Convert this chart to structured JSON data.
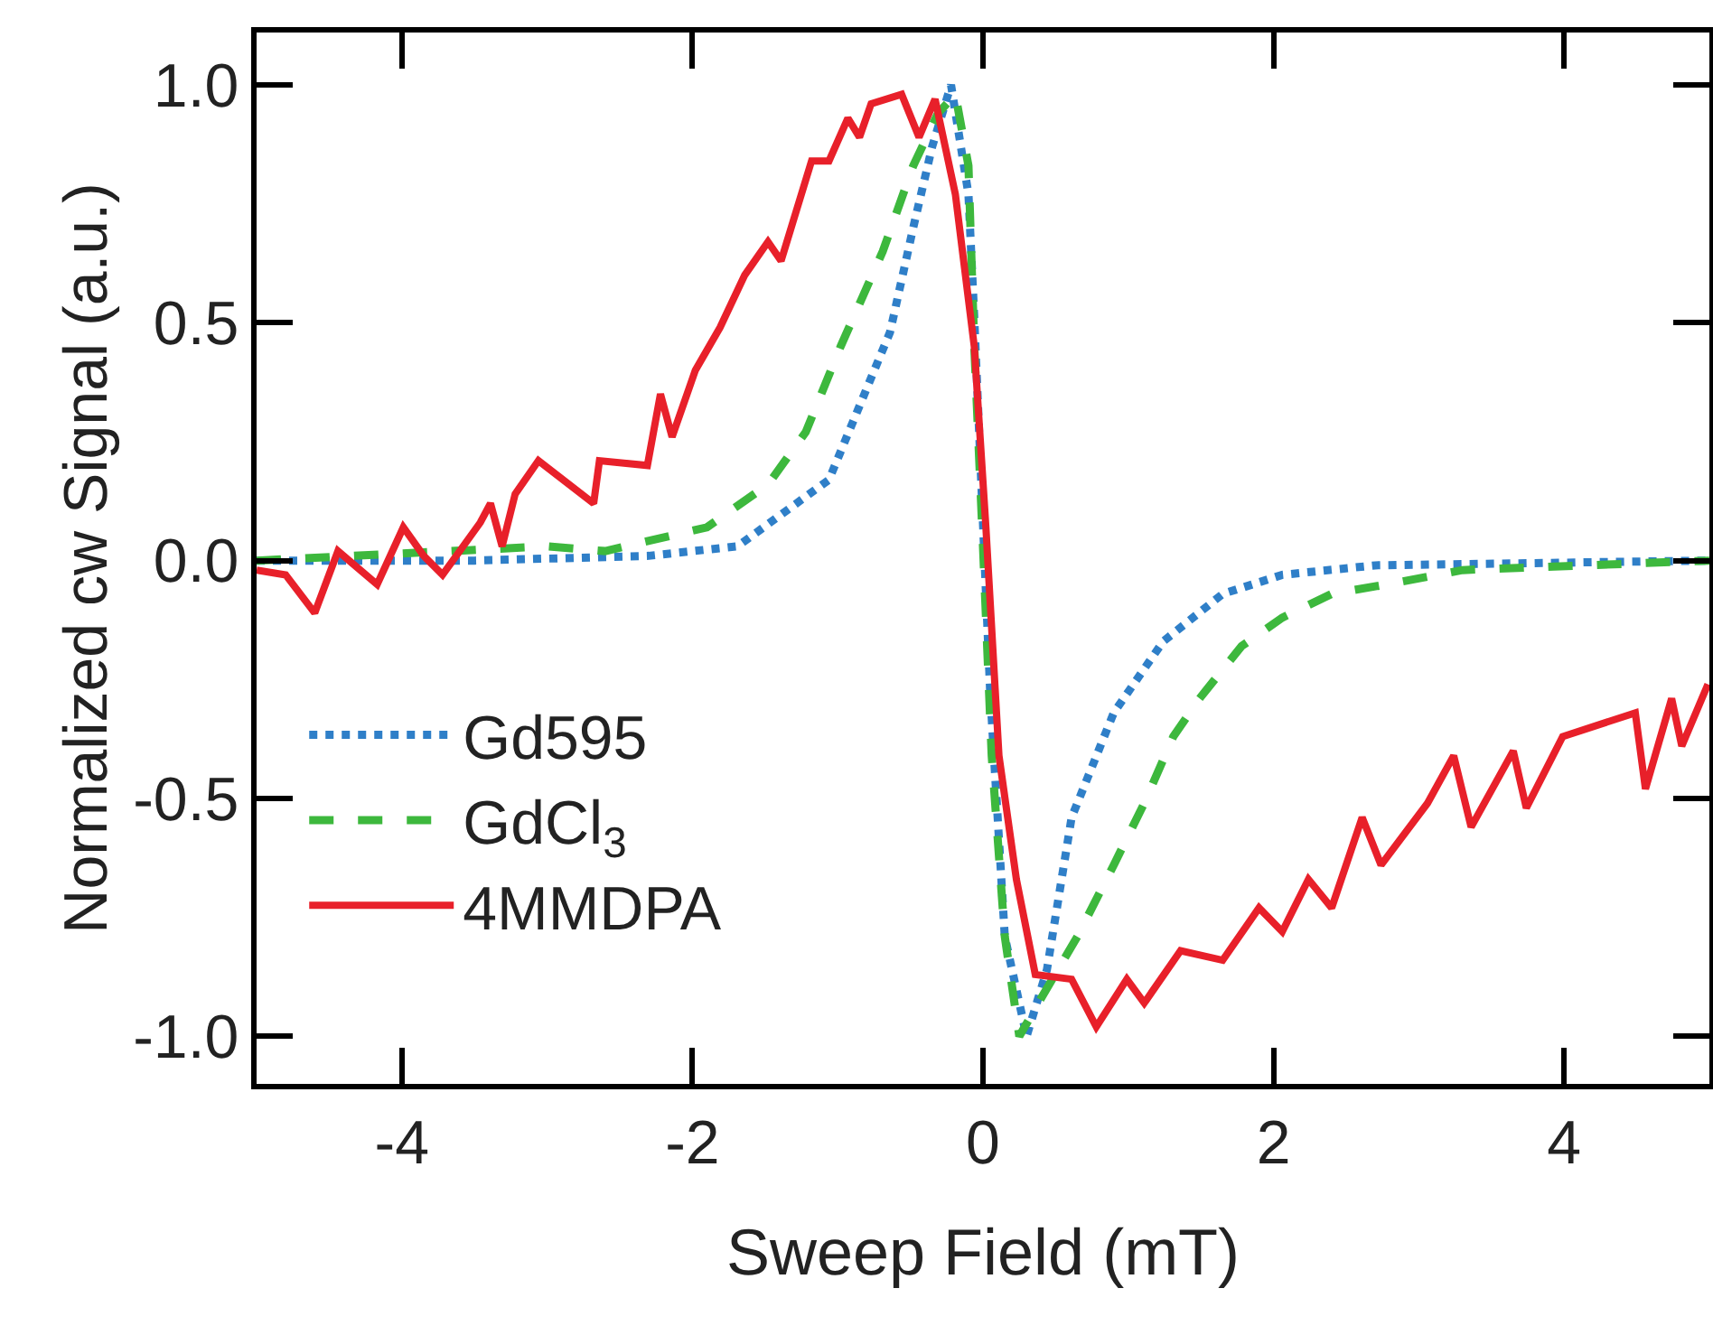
{
  "chart_data": {
    "type": "line",
    "xlabel": "Sweep Field (mT)",
    "ylabel": "Normalized cw Signal (a.u.)",
    "xlim": [
      -5,
      5
    ],
    "xticks": [
      -4,
      -2,
      0,
      2,
      4
    ],
    "ylim": [
      -1.1,
      1.11
    ],
    "yticks": [
      {
        "value": -1,
        "label": "-1.0"
      },
      {
        "value": -0.5,
        "label": "-0.5"
      },
      {
        "value": 0,
        "label": "0.0"
      },
      {
        "value": 0.5,
        "label": "0.5"
      },
      {
        "value": 1,
        "label": "1.0"
      }
    ],
    "grid": false,
    "legend": "bottom left",
    "series": [
      {
        "name": "Gd595",
        "color": "#2f7fc8",
        "line_style": "dotted",
        "x": [
          -5,
          -3.5,
          -2.3,
          -1.69,
          -1.06,
          -0.64,
          -0.48,
          -0.35,
          -0.22,
          -0.1,
          -0.06,
          0.05,
          0.15,
          0.3,
          0.44,
          0.61,
          0.9,
          1.24,
          1.65,
          2.06,
          2.7,
          5
        ],
        "values": [
          0,
          0,
          0.01,
          0.03,
          0.17,
          0.48,
          0.7,
          0.87,
          1.0,
          0.77,
          0.51,
          -0.28,
          -0.79,
          -1.0,
          -0.86,
          -0.54,
          -0.32,
          -0.17,
          -0.07,
          -0.03,
          -0.01,
          0
        ]
      },
      {
        "name": "GdCl$_{3}$",
        "color": "#3db83d",
        "line_style": "dashed",
        "x": [
          -5,
          -3,
          -2.6,
          -1.9,
          -1.48,
          -1.22,
          -0.98,
          -0.69,
          -0.48,
          -0.31,
          -0.19,
          -0.1,
          -0.06,
          0,
          0.06,
          0.15,
          0.25,
          0.4,
          0.65,
          0.9,
          1.11,
          1.31,
          1.49,
          1.78,
          2.06,
          2.4,
          2.78,
          3.3,
          5
        ],
        "values": [
          0,
          0.03,
          0.02,
          0.07,
          0.16,
          0.27,
          0.45,
          0.65,
          0.83,
          0.94,
          0.98,
          0.83,
          0.45,
          0.03,
          -0.41,
          -0.79,
          -1.0,
          -0.92,
          -0.79,
          -0.64,
          -0.51,
          -0.37,
          -0.29,
          -0.18,
          -0.12,
          -0.07,
          -0.05,
          -0.02,
          0
        ]
      },
      {
        "name": "4MMDPA",
        "color": "#e8202a",
        "line_style": "solid",
        "x": [
          -5,
          -4.8,
          -4.6,
          -4.44,
          -4.17,
          -3.99,
          -3.85,
          -3.72,
          -3.46,
          -3.39,
          -3.31,
          -3.22,
          -3.06,
          -2.68,
          -2.64,
          -2.31,
          -2.22,
          -2.14,
          -1.98,
          -1.81,
          -1.64,
          -1.48,
          -1.39,
          -1.31,
          -1.18,
          -1.06,
          -0.93,
          -0.85,
          -0.77,
          -0.56,
          -0.44,
          -0.33,
          -0.19,
          -0.06,
          0.02,
          0.11,
          0.23,
          0.36,
          0.61,
          0.78,
          0.99,
          1.11,
          1.36,
          1.65,
          1.9,
          2.06,
          2.24,
          2.4,
          2.61,
          2.74,
          3.06,
          3.24,
          3.36,
          3.65,
          3.74,
          3.99,
          4.49,
          4.56,
          4.74,
          4.81,
          4.99
        ],
        "values": [
          -0.02,
          -0.03,
          -0.11,
          0.02,
          -0.05,
          0.07,
          0.01,
          -0.03,
          0.08,
          0.12,
          0.03,
          0.14,
          0.21,
          0.12,
          0.21,
          0.2,
          0.35,
          0.26,
          0.4,
          0.49,
          0.6,
          0.67,
          0.63,
          0.71,
          0.84,
          0.84,
          0.93,
          0.89,
          0.96,
          0.98,
          0.89,
          0.97,
          0.77,
          0.45,
          0.07,
          -0.41,
          -0.67,
          -0.87,
          -0.88,
          -0.98,
          -0.88,
          -0.93,
          -0.82,
          -0.84,
          -0.73,
          -0.78,
          -0.67,
          -0.73,
          -0.54,
          -0.64,
          -0.51,
          -0.41,
          -0.56,
          -0.4,
          -0.52,
          -0.37,
          -0.32,
          -0.48,
          -0.29,
          -0.39,
          -0.26
        ]
      }
    ]
  }
}
